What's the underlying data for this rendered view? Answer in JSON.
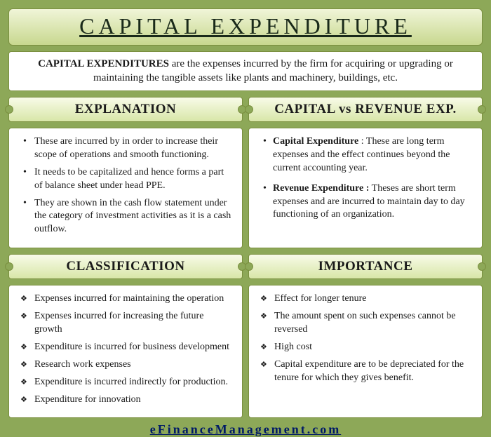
{
  "colors": {
    "page_bg": "#8da858",
    "banner_top": "#f0f5d8",
    "banner_bot": "#c8d88f",
    "border": "#7a8f3f",
    "box_bg": "#ffffff",
    "footer_text": "#001a66"
  },
  "title": "CAPITAL EXPENDITURE",
  "intro_bold": "CAPITAL EXPENDITURES",
  "intro_rest": " are the expenses incurred by the firm for acquiring or upgrading or maintaining the tangible assets like plants and machinery, buildings, etc.",
  "sections": {
    "explanation": {
      "heading": "EXPLANATION",
      "bullets": [
        "These are incurred by in order to increase their scope of operations and smooth functioning.",
        "It needs to be capitalized and hence forms a part of balance sheet under head PPE.",
        "They are shown in the cash flow statement under the category of investment activities as it is a cash outflow."
      ]
    },
    "compare": {
      "heading": "CAPITAL vs REVENUE EXP.",
      "items": [
        {
          "term": "Capital Expenditure",
          "sep": " : ",
          "desc": "These are long term expenses and the effect continues beyond the current accounting year."
        },
        {
          "term": "Revenue Expenditure :",
          "sep": " ",
          "desc": "Theses are short term expenses and are incurred to maintain day to day functioning of an organization."
        }
      ]
    },
    "classification": {
      "heading": "CLASSIFICATION",
      "bullets": [
        "Expenses incurred for maintaining the operation",
        "Expenses incurred for increasing the future growth",
        "Expenditure is incurred for business development",
        "Research work expenses",
        "Expenditure is incurred indirectly for production.",
        "Expenditure for innovation"
      ]
    },
    "importance": {
      "heading": "IMPORTANCE",
      "bullets": [
        "Effect for longer tenure",
        "The amount spent on such expenses cannot be reversed",
        "High cost",
        "Capital expenditure are to be depreciated for the tenure for which they gives benefit."
      ]
    }
  },
  "footer": "eFinanceManagement.com"
}
